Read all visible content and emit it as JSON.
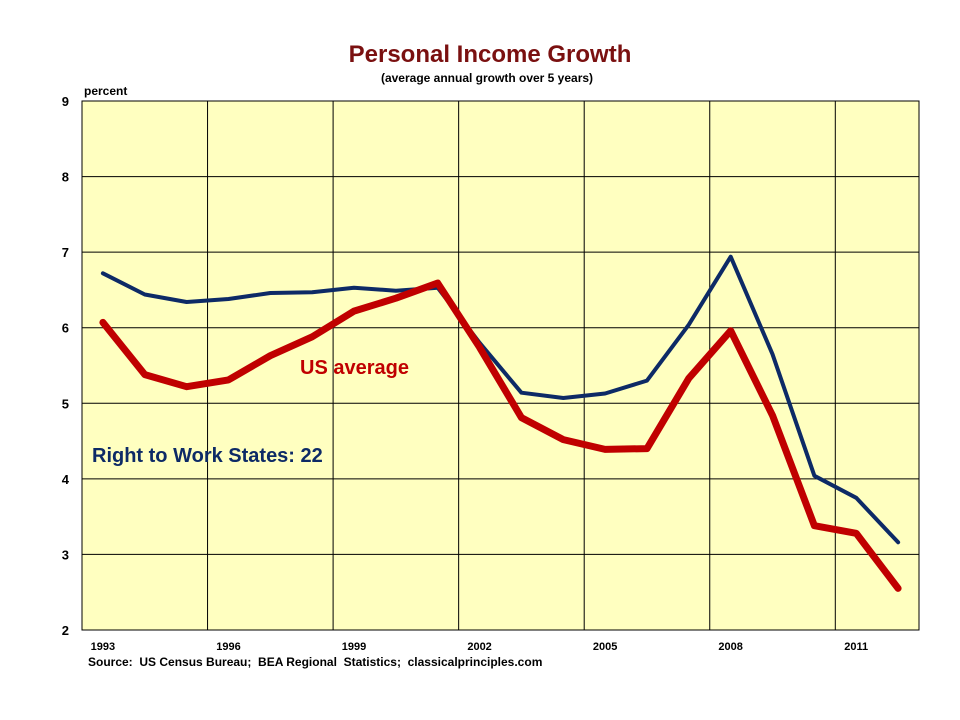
{
  "chart_data": {
    "type": "line",
    "title": "Personal Income Growth",
    "subtitle": "(average annual growth over 5 years)",
    "ylabel": "percent",
    "xlabel": "",
    "ylim": [
      2,
      9
    ],
    "yticks": [
      2,
      3,
      4,
      5,
      6,
      7,
      8,
      9
    ],
    "xlim": [
      1993,
      2013
    ],
    "xticks": [
      1993,
      1996,
      1999,
      2002,
      2005,
      2008,
      2011
    ],
    "grid": true,
    "x": [
      1993,
      1994,
      1995,
      1996,
      1997,
      1998,
      1999,
      2000,
      2001,
      2002,
      2003,
      2004,
      2005,
      2006,
      2007,
      2008,
      2009,
      2010,
      2011,
      2012
    ],
    "series": [
      {
        "name": "Right to Work States: 22",
        "color": "#0d2a66",
        "values": [
          6.72,
          6.44,
          6.34,
          6.38,
          6.46,
          6.47,
          6.53,
          6.49,
          6.53,
          5.8,
          5.14,
          5.07,
          5.13,
          5.3,
          6.04,
          6.94,
          5.65,
          4.04,
          3.75,
          3.16
        ]
      },
      {
        "name": "US average",
        "color": "#c00000",
        "values": [
          6.07,
          5.38,
          5.22,
          5.31,
          5.63,
          5.88,
          6.22,
          6.39,
          6.59,
          5.74,
          4.81,
          4.52,
          4.39,
          4.4,
          5.33,
          5.96,
          4.84,
          3.38,
          3.28,
          2.55
        ]
      }
    ],
    "annotations": {
      "source": "Source:  US Census Bureau;  BEA Regional  Statistics;  classicalprinciples.com"
    },
    "plot_background": "#ffffc0"
  }
}
